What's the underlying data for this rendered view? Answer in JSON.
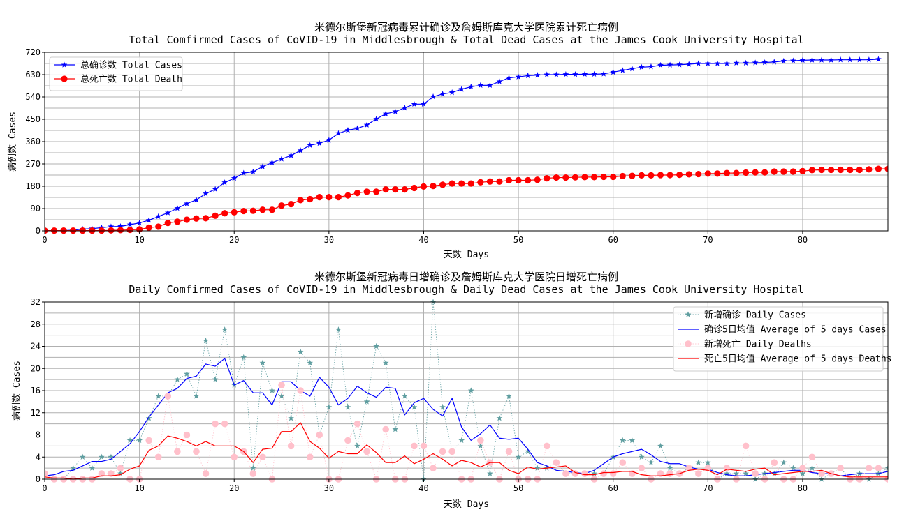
{
  "chart_data": [
    {
      "type": "line",
      "title": "米德尔斯堡新冠病毒累计确诊及詹姆斯库克大学医院累计死亡病例",
      "subtitle": "Total Comfirmed Cases of CoVID-19 in Middlesbrough & Total Dead Cases at the James Cook University Hospital",
      "xlabel": "天数 Days",
      "ylabel": "病例数 Cases",
      "xlim": [
        0,
        89
      ],
      "ylim": [
        0,
        720
      ],
      "xticks": [
        "0",
        "10",
        "20",
        "30",
        "40",
        "50",
        "60",
        "70",
        "80"
      ],
      "yticks": [
        "0",
        "90",
        "180",
        "270",
        "360",
        "450",
        "540",
        "630",
        "720"
      ],
      "grid": true,
      "legend_position": "upper-left",
      "colors": {
        "total_cases": "#0000ff",
        "total_death": "#ff0000",
        "grid": "#b0b0b0"
      },
      "series": [
        {
          "name": "总确诊数 Total Cases",
          "marker": "star",
          "values": [
            1,
            1,
            1,
            3,
            7,
            9,
            13,
            17,
            18,
            25,
            32,
            43,
            58,
            73,
            91,
            110,
            125,
            150,
            168,
            195,
            212,
            233,
            238,
            259,
            275,
            290,
            304,
            324,
            345,
            353,
            366,
            393,
            406,
            413,
            427,
            451,
            472,
            481,
            496,
            511,
            511,
            541,
            552,
            558,
            571,
            581,
            587,
            587,
            602,
            617,
            621,
            626,
            628,
            630,
            630,
            631,
            631,
            632,
            632,
            633,
            640,
            647,
            654,
            660,
            662,
            668,
            669,
            670,
            672,
            675,
            675,
            675,
            675,
            677,
            677,
            678,
            679,
            681,
            685,
            686,
            688,
            689,
            689,
            689,
            690,
            690,
            690,
            690,
            692
          ]
        },
        {
          "name": "总死亡数 Total Death",
          "marker": "circle",
          "values": [
            1,
            1,
            1,
            1,
            1,
            1,
            1,
            2,
            3,
            4,
            6,
            13,
            17,
            32,
            37,
            45,
            50,
            51,
            61,
            71,
            75,
            80,
            81,
            85,
            85,
            102,
            108,
            124,
            128,
            136,
            136,
            136,
            143,
            153,
            158,
            158,
            167,
            167,
            167,
            173,
            179,
            181,
            186,
            191,
            191,
            191,
            196,
            199,
            199,
            204,
            204,
            204,
            206,
            212,
            215,
            215,
            216,
            217,
            217,
            218,
            218,
            221,
            222,
            224,
            224,
            225,
            225,
            226,
            228,
            229,
            231,
            231,
            233,
            233,
            235,
            236,
            236,
            239,
            239,
            239,
            241,
            245,
            246,
            246,
            246,
            246,
            246,
            248,
            250,
            250
          ]
        }
      ]
    },
    {
      "type": "line",
      "title": "米德尔斯堡新冠病毒日增确诊及詹姆斯库克大学医院日增死亡病例",
      "subtitle": "Daily Comfirmed Cases of CoVID-19 in Middlesbrough & Daily Dead Cases at the James Cook University Hospital",
      "xlabel": "天数 Days",
      "ylabel": "病例数 Cases",
      "xlim": [
        0,
        89
      ],
      "ylim": [
        0,
        32
      ],
      "xticks": [
        "0",
        "10",
        "20",
        "30",
        "40",
        "50",
        "60",
        "70",
        "80"
      ],
      "yticks": [
        "0",
        "4",
        "8",
        "12",
        "16",
        "20",
        "24",
        "28",
        "32"
      ],
      "grid": true,
      "legend_position": "upper-right",
      "colors": {
        "daily_cases": "#5f9ea0",
        "avg_cases": "#0000ff",
        "daily_deaths": "#ffc0cb",
        "avg_deaths": "#ff0000",
        "grid": "#b0b0b0"
      },
      "series": [
        {
          "name": "新增确诊    Daily Cases",
          "marker": "star",
          "style": "dotted",
          "values": [
            1,
            0,
            0,
            2,
            4,
            2,
            4,
            4,
            1,
            7,
            7,
            11,
            15,
            15,
            18,
            19,
            15,
            25,
            18,
            27,
            17,
            22,
            2,
            21,
            16,
            15,
            11,
            23,
            21,
            8,
            13,
            27,
            13,
            6,
            14,
            24,
            21,
            9,
            15,
            13,
            0,
            32,
            13,
            5,
            7,
            16,
            6,
            1,
            11,
            15,
            4,
            5,
            2,
            2,
            3,
            1,
            1,
            1,
            1,
            1,
            4,
            7,
            7,
            4,
            3,
            6,
            2,
            1,
            2,
            3,
            3,
            0,
            1,
            1,
            1,
            0,
            1,
            1,
            3,
            2,
            1,
            2,
            0,
            1,
            2,
            0,
            1,
            0,
            1,
            2
          ]
        },
        {
          "name": "确诊5日均值 Average of 5 days Cases",
          "style": "solid",
          "values": [
            0.6,
            0.8,
            1.4,
            1.6,
            2.4,
            3.2,
            3.2,
            3.6,
            5.0,
            6.4,
            8.6,
            11.2,
            13.4,
            15.6,
            16.4,
            18.2,
            18.6,
            20.8,
            20.4,
            21.8,
            17.0,
            17.8,
            15.6,
            15.6,
            13.4,
            17.6,
            17.6,
            16.0,
            15.0,
            18.4,
            16.6,
            13.4,
            14.6,
            16.8,
            15.6,
            14.8,
            16.6,
            16.4,
            11.6,
            13.8,
            14.6,
            12.6,
            11.4,
            14.6,
            9.4,
            7.0,
            8.2,
            9.8,
            7.4,
            7.2,
            7.4,
            5.4,
            3.0,
            2.4,
            1.6,
            1.4,
            1.2,
            1.0,
            1.6,
            2.8,
            4.0,
            4.6,
            5.0,
            5.4,
            4.4,
            3.2,
            2.8,
            2.8,
            2.2,
            1.8,
            1.8,
            1.2,
            0.8,
            0.6,
            0.6,
            0.8,
            1.0,
            1.2,
            1.4,
            1.6,
            1.6,
            1.2,
            1.0,
            1.0,
            0.6,
            0.8,
            1.0,
            1.0,
            1.0,
            1.4
          ]
        },
        {
          "name": "新增死亡    Daily Deaths",
          "marker": "circle",
          "style": "dotted",
          "values": [
            1,
            0,
            0,
            0,
            0,
            0,
            1,
            1,
            2,
            0,
            0,
            7,
            4,
            15,
            5,
            8,
            5,
            1,
            10,
            10,
            4,
            5,
            1,
            4,
            0,
            17,
            6,
            16,
            4,
            8,
            0,
            0,
            7,
            10,
            5,
            0,
            9,
            0,
            0,
            6,
            6,
            2,
            5,
            5,
            0,
            0,
            7,
            3,
            0,
            5,
            0,
            0,
            0,
            6,
            3,
            1,
            1,
            1,
            0,
            1,
            1,
            3,
            1,
            2,
            0,
            1,
            1,
            1,
            2,
            1,
            2,
            0,
            2,
            0,
            6,
            1,
            0,
            3,
            0,
            0,
            2,
            4,
            1,
            1,
            2,
            0,
            0,
            2,
            2,
            0
          ]
        },
        {
          "name": "死亡5日均值 Average of 5 days Deaths",
          "style": "solid",
          "values": [
            0.4,
            0.2,
            0.2,
            0.0,
            0.2,
            0.2,
            0.6,
            0.6,
            0.8,
            1.8,
            2.4,
            5.2,
            6.0,
            7.8,
            7.4,
            6.8,
            6.0,
            6.8,
            6.0,
            6.0,
            6.0,
            5.0,
            3.0,
            5.4,
            5.6,
            8.6,
            8.6,
            10.2,
            6.8,
            5.6,
            3.8,
            5.0,
            4.6,
            4.6,
            6.2,
            4.8,
            3.0,
            3.0,
            4.2,
            2.8,
            3.6,
            4.6,
            3.6,
            2.4,
            3.4,
            3.0,
            2.2,
            3.0,
            3.0,
            1.6,
            1.0,
            2.2,
            1.8,
            2.0,
            2.2,
            2.4,
            1.2,
            0.8,
            0.8,
            1.2,
            1.2,
            1.4,
            1.4,
            0.8,
            0.6,
            0.6,
            0.8,
            1.0,
            1.6,
            1.8,
            1.6,
            0.8,
            1.8,
            1.6,
            1.4,
            1.8,
            2.0,
            0.8,
            1.0,
            1.2,
            1.4,
            1.4,
            1.6,
            1.0,
            0.6,
            0.4,
            0.4,
            0.4,
            0.4,
            0.4
          ]
        }
      ]
    }
  ]
}
